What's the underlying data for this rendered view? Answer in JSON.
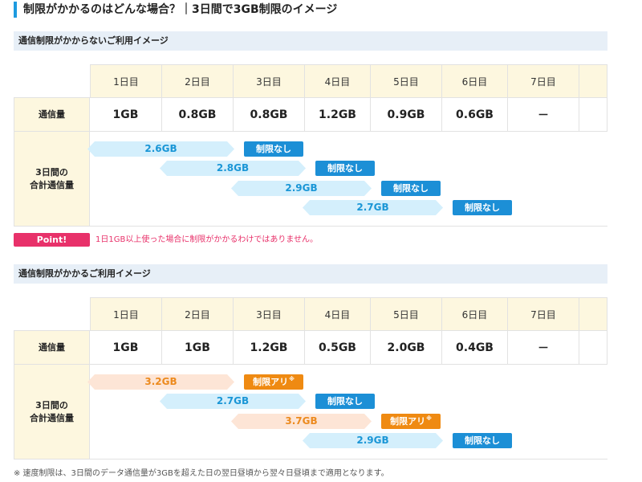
{
  "page_title": "制限がかかるのはどんな場合？｜3日間で3GB制限のイメージ",
  "section1": {
    "title": "通信制限がかからないご利用イメージ",
    "days": [
      "1日目",
      "2日目",
      "3日目",
      "4日目",
      "5日目",
      "6日目",
      "7日目"
    ],
    "usage_label": "通信量",
    "usage": [
      "1GB",
      "0.8GB",
      "0.8GB",
      "1.2GB",
      "0.9GB",
      "0.6GB",
      "－"
    ],
    "total_label_line1": "3日間の",
    "total_label_line2": "合計通信量",
    "totals": [
      {
        "amount": "2.6GB",
        "status": "制限なし",
        "mark": ""
      },
      {
        "amount": "2.8GB",
        "status": "制限なし",
        "mark": ""
      },
      {
        "amount": "2.9GB",
        "status": "制限なし",
        "mark": ""
      },
      {
        "amount": "2.7GB",
        "status": "制限なし",
        "mark": ""
      }
    ]
  },
  "point": {
    "label": "Point!",
    "text": "1日1GB以上使った場合に制限がかかるわけではありません。"
  },
  "section2": {
    "title": "通信制限がかかるご利用イメージ",
    "days": [
      "1日目",
      "2日目",
      "3日目",
      "4日目",
      "5日目",
      "6日目",
      "7日目"
    ],
    "usage_label": "通信量",
    "usage": [
      "1GB",
      "1GB",
      "1.2GB",
      "0.5GB",
      "2.0GB",
      "0.4GB",
      "－"
    ],
    "total_label_line1": "3日間の",
    "total_label_line2": "合計通信量",
    "totals": [
      {
        "amount": "3.2GB",
        "status": "制限アリ",
        "mark": "※"
      },
      {
        "amount": "2.7GB",
        "status": "制限なし",
        "mark": ""
      },
      {
        "amount": "3.7GB",
        "status": "制限アリ",
        "mark": "※"
      },
      {
        "amount": "2.9GB",
        "status": "制限なし",
        "mark": ""
      }
    ]
  },
  "footnote": "※ 速度制限は、3日間のデータ通信量が3GBを超えた日の翌日昼頃から翌々日昼頃まで適用となります。",
  "colors": {
    "accent_blue": "#1e9be0",
    "header_bg": "#fdf7df",
    "section_bg": "#e7eff7",
    "arrow_blue": "#d4effc",
    "arrow_peach": "#fde5d6",
    "badge_blue": "#1c8fd6",
    "badge_orange": "#ef8a12",
    "point_pink": "#e8316a"
  }
}
